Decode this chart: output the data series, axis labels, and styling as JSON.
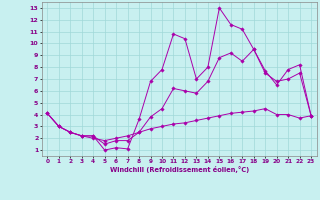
{
  "xlabel": "Windchill (Refroidissement éolien,°C)",
  "background_color": "#c8f0f0",
  "grid_color": "#a0d8d8",
  "line_color": "#aa00aa",
  "xlim": [
    -0.5,
    23.5
  ],
  "ylim": [
    0.5,
    13.5
  ],
  "yticks": [
    1,
    2,
    3,
    4,
    5,
    6,
    7,
    8,
    9,
    10,
    11,
    12,
    13
  ],
  "xticks": [
    0,
    1,
    2,
    3,
    4,
    5,
    6,
    7,
    8,
    9,
    10,
    11,
    12,
    13,
    14,
    15,
    16,
    17,
    18,
    19,
    20,
    21,
    22,
    23
  ],
  "line1_x": [
    0,
    1,
    2,
    3,
    4,
    5,
    6,
    7,
    8,
    9,
    10,
    11,
    12,
    13,
    14,
    15,
    16,
    17,
    18,
    19,
    20,
    21,
    22,
    23
  ],
  "line1_y": [
    4.1,
    3.0,
    2.5,
    2.2,
    2.2,
    1.0,
    1.2,
    1.1,
    3.6,
    6.8,
    7.8,
    10.8,
    10.4,
    7.0,
    8.0,
    13.0,
    11.6,
    11.2,
    9.5,
    7.7,
    6.5,
    7.8,
    8.2,
    3.9
  ],
  "line2_x": [
    0,
    1,
    2,
    3,
    4,
    5,
    6,
    7,
    8,
    9,
    10,
    11,
    12,
    13,
    14,
    15,
    16,
    17,
    18,
    19,
    20,
    21,
    22,
    23
  ],
  "line2_y": [
    4.1,
    3.0,
    2.5,
    2.2,
    2.2,
    1.5,
    1.8,
    1.8,
    2.5,
    3.8,
    4.5,
    6.2,
    6.0,
    5.8,
    6.8,
    8.8,
    9.2,
    8.5,
    9.5,
    7.5,
    6.8,
    7.0,
    7.5,
    3.9
  ],
  "line3_x": [
    0,
    1,
    2,
    3,
    4,
    5,
    6,
    7,
    8,
    9,
    10,
    11,
    12,
    13,
    14,
    15,
    16,
    17,
    18,
    19,
    20,
    21,
    22,
    23
  ],
  "line3_y": [
    4.1,
    3.0,
    2.5,
    2.2,
    2.0,
    1.8,
    2.0,
    2.2,
    2.5,
    2.8,
    3.0,
    3.2,
    3.3,
    3.5,
    3.7,
    3.9,
    4.1,
    4.2,
    4.3,
    4.5,
    4.0,
    4.0,
    3.7,
    3.9
  ]
}
